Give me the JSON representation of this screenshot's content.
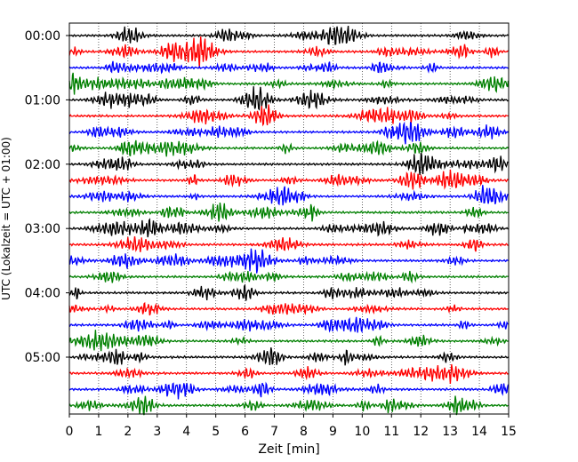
{
  "chart_data": {
    "type": "line",
    "xlabel": "Zeit  [min]",
    "ylabel": "UTC (Lokalzeit = UTC + 01:00)",
    "xlim": [
      0,
      15
    ],
    "x_ticks": [
      "0",
      "1",
      "2",
      "3",
      "4",
      "5",
      "6",
      "7",
      "8",
      "9",
      "10",
      "11",
      "12",
      "13",
      "14",
      "15"
    ],
    "y_tick_labels": [
      "00:00",
      "01:00",
      "02:00",
      "03:00",
      "04:00",
      "05:00"
    ],
    "grid": {
      "vertical": true,
      "horizontal": false
    },
    "row_interval_minutes": 15,
    "trace_count": 24,
    "trace_colors": [
      "#000000",
      "#ff0000",
      "#0000ff",
      "#008000"
    ]
  }
}
